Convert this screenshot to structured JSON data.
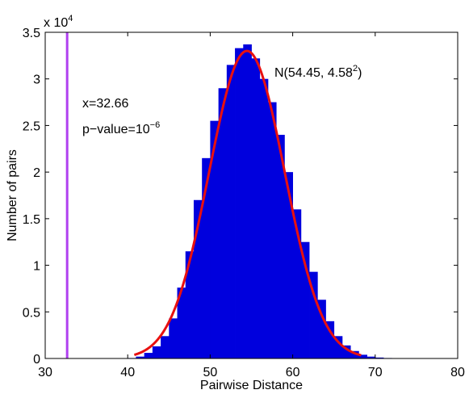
{
  "chart_data": {
    "type": "bar",
    "title": "",
    "xlabel": "Pairwise Distance",
    "ylabel": "Number of pairs",
    "xlim": [
      30,
      80
    ],
    "ylim": [
      0,
      35000
    ],
    "xticks": [
      30,
      40,
      50,
      60,
      70,
      80
    ],
    "xtick_labels": [
      "30",
      "40",
      "50",
      "60",
      "70",
      "80"
    ],
    "yticks": [
      0,
      5000,
      10000,
      15000,
      20000,
      25000,
      30000,
      35000
    ],
    "ytick_labels": [
      "0",
      "0.5",
      "1",
      "1.5",
      "2",
      "2.5",
      "3",
      "3.5"
    ],
    "y_multiplier_label": "x 10",
    "y_multiplier_exponent": "4",
    "grid": false,
    "histogram": {
      "color": "#0000dd",
      "x": [
        40,
        41,
        42,
        43,
        44,
        45,
        46,
        47,
        48,
        49,
        50,
        51,
        52,
        53,
        54,
        55,
        56,
        57,
        58,
        59,
        60,
        61,
        62,
        63,
        64,
        65,
        66,
        67,
        68,
        69,
        70,
        71,
        72,
        73,
        74
      ],
      "y": [
        50,
        200,
        600,
        1300,
        2400,
        4300,
        7600,
        11500,
        17000,
        21500,
        25500,
        29000,
        31500,
        33300,
        33700,
        32200,
        30000,
        27500,
        24000,
        20000,
        16000,
        12500,
        9300,
        6300,
        4000,
        2400,
        1400,
        800,
        400,
        200,
        100,
        50,
        20,
        10,
        5
      ]
    },
    "normal_fit": {
      "color": "#e81010",
      "label": "N(54.45, 4.58",
      "label_exponent": "2",
      "label_close": ")",
      "mean": 54.45,
      "sd": 4.58,
      "peak": 33000,
      "x_range": [
        40.8,
        68.3
      ]
    },
    "observed_line": {
      "color": "#b040f0",
      "x": 32.66,
      "label": "x=32.66"
    },
    "pvalue": {
      "label": "p−value=10",
      "exponent": "−6"
    }
  }
}
